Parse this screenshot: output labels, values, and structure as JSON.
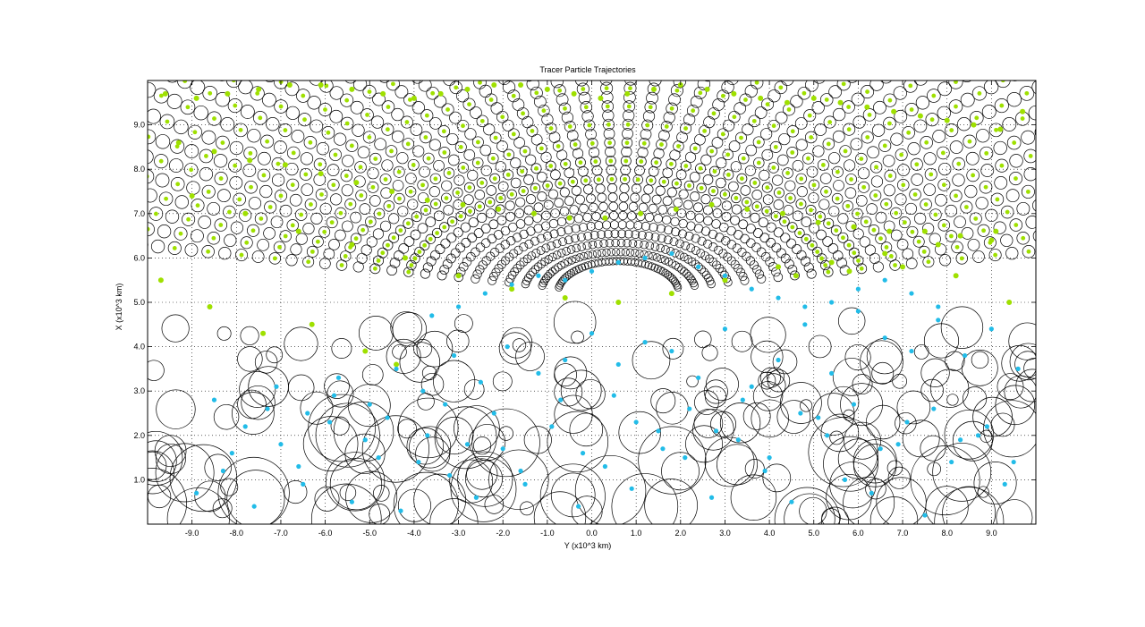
{
  "chart_data": {
    "type": "scatter",
    "title": "Tracer Particle Trajectories",
    "xlabel": "Y (x10^3 km)",
    "ylabel": "X (x10^3 km)",
    "xlim": [
      -10,
      10
    ],
    "ylim": [
      0,
      10
    ],
    "xticks": [
      -9,
      -8,
      -7,
      -6,
      -5,
      -4,
      -3,
      -2,
      -1,
      0,
      1,
      2,
      3,
      4,
      5,
      6,
      7,
      8,
      9
    ],
    "xtick_labels": [
      "-9.0",
      "-8.0",
      "-7.0",
      "-6.0",
      "-5.0",
      "-4.0",
      "-3.0",
      "-2.0",
      "-1.0",
      "0.0",
      "1.0",
      "2.0",
      "3.0",
      "4.0",
      "5.0",
      "6.0",
      "7.0",
      "8.0",
      "9.0"
    ],
    "yticks": [
      1,
      2,
      3,
      4,
      5,
      6,
      7,
      8,
      9
    ],
    "ytick_labels": [
      "1.0",
      "2.0",
      "3.0",
      "4.0",
      "5.0",
      "6.0",
      "7.0",
      "8.0",
      "9.0"
    ],
    "grid": true,
    "legend": "none",
    "colors": {
      "upper_markers": "#9fe000",
      "lower_markers": "#22bce8",
      "rings": "#000000"
    },
    "series": [
      {
        "color": "#9fe000",
        "x": [
          -9.6,
          -8.9,
          -8.2,
          -7.5,
          -6.8,
          -6.1,
          -5.4,
          -4.7,
          -4.0,
          -3.4,
          -2.8,
          -2.2,
          -1.6,
          -1.0,
          -0.4,
          0.2,
          0.8,
          1.4,
          2.0,
          2.6,
          3.2,
          3.8,
          4.4,
          5.0,
          5.6,
          6.2,
          6.8,
          7.4,
          8.0,
          8.6,
          9.2,
          9.7,
          -9.3,
          -8.5,
          -7.7,
          -6.9,
          -6.1,
          -5.3,
          -4.5,
          -3.7,
          -2.9,
          -2.1,
          -1.3,
          -0.5,
          0.3,
          1.1,
          1.9,
          2.7,
          3.5,
          4.3,
          5.1,
          5.9,
          6.7,
          7.5,
          8.3,
          9.1,
          -9.0,
          -7.8,
          -6.6,
          -5.4,
          -4.2,
          -3.0,
          -1.8,
          -0.6,
          0.6,
          1.8,
          3.0,
          4.2,
          5.4,
          6.6,
          7.8,
          9.0,
          -9.7,
          -8.6,
          -7.4,
          -6.3,
          -5.1,
          -4.4,
          4.6,
          5.8,
          7.0,
          8.2,
          9.4
        ],
        "y": [
          9.7,
          9.6,
          9.7,
          9.8,
          9.9,
          9.9,
          9.8,
          9.7,
          9.6,
          9.7,
          9.8,
          9.9,
          9.9,
          9.8,
          9.7,
          9.6,
          9.7,
          9.8,
          9.9,
          9.8,
          9.7,
          9.6,
          9.5,
          9.6,
          9.5,
          9.4,
          9.3,
          9.2,
          9.1,
          9.0,
          8.9,
          9.3,
          8.6,
          8.4,
          8.2,
          8.1,
          7.9,
          7.7,
          7.5,
          7.3,
          7.2,
          7.1,
          7.0,
          6.9,
          6.9,
          7.0,
          7.1,
          7.2,
          7.1,
          7.0,
          6.8,
          6.7,
          6.6,
          6.6,
          6.5,
          6.6,
          7.4,
          7.0,
          6.6,
          6.3,
          6.0,
          5.6,
          5.3,
          5.1,
          5.0,
          5.2,
          5.5,
          5.8,
          5.9,
          6.1,
          6.3,
          6.4,
          5.5,
          4.9,
          4.3,
          4.5,
          3.9,
          3.6,
          5.6,
          5.7,
          5.8,
          5.6,
          5.0
        ]
      },
      {
        "color": "#22bce8",
        "x": [
          -8.9,
          -8.3,
          -7.6,
          -7.0,
          -6.5,
          -5.9,
          -5.4,
          -4.8,
          -4.3,
          -3.7,
          -3.2,
          -2.6,
          -2.0,
          -1.5,
          -0.9,
          -0.3,
          0.3,
          0.9,
          1.5,
          2.1,
          2.7,
          3.3,
          3.9,
          4.5,
          5.1,
          5.7,
          6.3,
          6.9,
          7.5,
          8.1,
          8.7,
          9.3,
          -8.5,
          -7.8,
          -7.1,
          -6.4,
          -5.7,
          -5.0,
          -4.4,
          -3.8,
          -3.1,
          -2.5,
          -1.9,
          -1.2,
          -0.6,
          0.0,
          0.6,
          1.2,
          1.8,
          2.4,
          3.0,
          3.6,
          4.2,
          4.8,
          5.4,
          6.0,
          6.6,
          7.2,
          7.8,
          8.4,
          9.0,
          9.6,
          -8.1,
          -7.3,
          -6.6,
          -5.8,
          -5.1,
          -4.6,
          -3.9,
          -3.3,
          -2.8,
          -2.2,
          -1.6,
          -0.7,
          -0.2,
          0.5,
          1.0,
          1.6,
          2.2,
          2.8,
          3.4,
          4.0,
          4.7,
          5.3,
          5.9,
          6.5,
          7.1,
          7.7,
          8.3,
          8.9,
          9.5,
          -3.6,
          -3.0,
          -2.4,
          -1.8,
          -1.2,
          -0.6,
          0.0,
          0.6,
          1.2,
          1.8,
          2.4,
          3.0,
          3.6,
          4.2,
          4.8,
          5.4,
          6.0,
          6.6,
          7.2,
          7.8
        ],
        "y": [
          0.7,
          1.2,
          0.4,
          1.8,
          0.9,
          2.3,
          0.5,
          1.5,
          0.3,
          2.0,
          1.1,
          0.6,
          1.7,
          0.9,
          2.2,
          0.4,
          1.3,
          0.8,
          2.1,
          1.5,
          0.6,
          1.9,
          1.2,
          0.5,
          2.4,
          1.0,
          0.7,
          1.8,
          0.2,
          1.4,
          2.0,
          0.9,
          2.8,
          2.2,
          3.1,
          2.5,
          3.3,
          2.7,
          3.5,
          3.0,
          3.8,
          3.2,
          4.0,
          3.4,
          3.7,
          4.3,
          3.6,
          4.1,
          3.9,
          3.3,
          4.4,
          3.1,
          3.7,
          4.5,
          3.4,
          4.8,
          4.2,
          3.9,
          4.6,
          3.8,
          4.4,
          3.5,
          1.6,
          2.6,
          1.3,
          2.9,
          1.9,
          2.4,
          1.4,
          2.7,
          1.8,
          2.5,
          1.2,
          2.8,
          1.6,
          2.9,
          2.3,
          1.7,
          2.6,
          2.1,
          2.8,
          1.5,
          2.5,
          2.0,
          2.7,
          1.7,
          2.3,
          2.6,
          1.9,
          2.2,
          1.4,
          4.7,
          4.9,
          5.2,
          5.4,
          5.6,
          5.5,
          5.7,
          5.9,
          6.0,
          6.1,
          5.8,
          5.6,
          5.3,
          5.1,
          4.9,
          5.0,
          5.3,
          5.5,
          5.2,
          4.9
        ]
      }
    ]
  }
}
